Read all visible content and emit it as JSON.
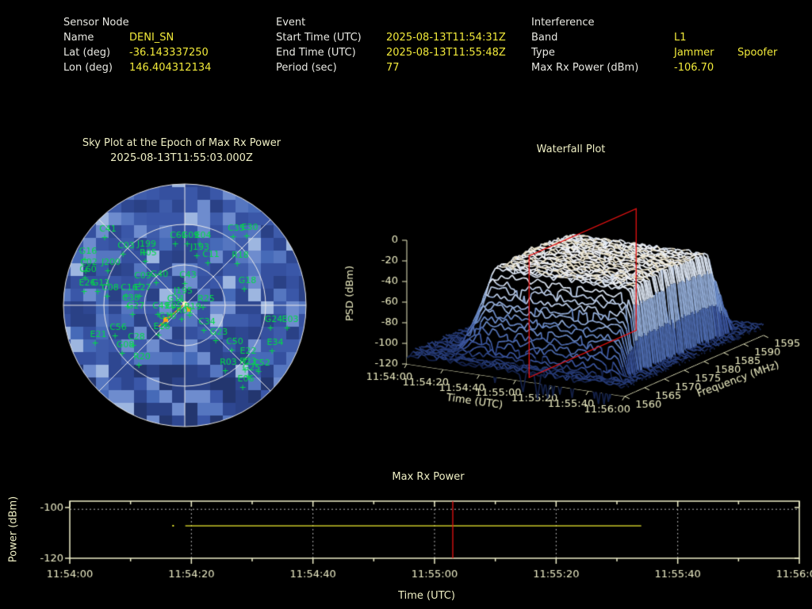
{
  "header": {
    "sensor_node": {
      "title": "Sensor Node",
      "rows": [
        {
          "label": "Name",
          "value": "DENI_SN"
        },
        {
          "label": "Lat (deg)",
          "value": "-36.143337250"
        },
        {
          "label": "Lon (deg)",
          "value": "146.404312134"
        }
      ]
    },
    "event": {
      "title": "Event",
      "rows": [
        {
          "label": "Start Time (UTC)",
          "value": "2025-08-13T11:54:31Z"
        },
        {
          "label": "End Time (UTC)",
          "value": "2025-08-13T11:55:48Z"
        },
        {
          "label": "Period (sec)",
          "value": "77"
        }
      ]
    },
    "interference": {
      "title": "Interference",
      "rows": [
        {
          "label": "Band",
          "value": "L1",
          "value2": ""
        },
        {
          "label": "Type",
          "value": "Jammer",
          "value2": "Spoofer"
        },
        {
          "label": "Max Rx Power (dBm)",
          "value": "-106.70",
          "value2": ""
        }
      ]
    }
  },
  "colors": {
    "label_text": "#e8e8e2",
    "value_text": "#f2ea3a",
    "title_text": "#efefc4",
    "frame": "#eeeec8",
    "grid_dotted": "#b4b4b4",
    "green": "#00dc46",
    "orange": "#ffa018",
    "yellow_series": "#f0ee30",
    "red_marker": "#e81212"
  },
  "chart_data": [
    {
      "type": "skyplot",
      "title": "Sky Plot at the Epoch of Max Rx Power",
      "subtitle": "2025-08-13T11:55:03.000Z",
      "elevation_rings_deg": [
        30,
        60
      ],
      "azimuth_spokes_deg": [
        0,
        45,
        90,
        135,
        180,
        225,
        270,
        315
      ],
      "label_color": "#00dc46",
      "satellites": [
        {
          "id": "C41",
          "x": 73,
          "y": 64
        },
        {
          "id": "G16",
          "x": 48,
          "y": 92
        },
        {
          "id": "C02",
          "x": 49,
          "y": 106
        },
        {
          "id": "J200",
          "x": 77,
          "y": 106
        },
        {
          "id": "C60",
          "x": 48,
          "y": 115
        },
        {
          "id": "E26",
          "x": 47,
          "y": 132
        },
        {
          "id": "G13",
          "x": 64,
          "y": 132
        },
        {
          "id": "C08",
          "x": 76,
          "y": 138
        },
        {
          "id": "C16",
          "x": 100,
          "y": 138
        },
        {
          "id": "E27",
          "x": 117,
          "y": 138
        },
        {
          "id": "C38",
          "x": 102,
          "y": 151
        },
        {
          "id": "G27",
          "x": 108,
          "y": 161
        },
        {
          "id": "C03",
          "x": 96,
          "y": 85
        },
        {
          "id": "J199",
          "x": 122,
          "y": 83
        },
        {
          "id": "R05",
          "x": 124,
          "y": 94
        },
        {
          "id": "C61",
          "x": 162,
          "y": 72
        },
        {
          "id": "G09",
          "x": 177,
          "y": 72
        },
        {
          "id": "E04",
          "x": 193,
          "y": 72
        },
        {
          "id": "J193",
          "x": 189,
          "y": 87
        },
        {
          "id": "C11",
          "x": 203,
          "y": 96
        },
        {
          "id": "R18",
          "x": 240,
          "y": 97
        },
        {
          "id": "C35",
          "x": 235,
          "y": 63
        },
        {
          "id": "E30",
          "x": 252,
          "y": 62
        },
        {
          "id": "C09",
          "x": 117,
          "y": 123
        },
        {
          "id": "G40",
          "x": 138,
          "y": 121
        },
        {
          "id": "C43",
          "x": 174,
          "y": 122
        },
        {
          "id": "G18",
          "x": 249,
          "y": 129
        },
        {
          "id": "J195",
          "x": 168,
          "y": 142
        },
        {
          "id": "G11",
          "x": 159,
          "y": 152
        },
        {
          "id": "R25",
          "x": 197,
          "y": 152
        },
        {
          "id": "C49",
          "x": 140,
          "y": 161
        },
        {
          "id": "E05",
          "x": 156,
          "y": 161
        },
        {
          "id": "R19",
          "x": 180,
          "y": 162
        },
        {
          "id": "R01",
          "x": 170,
          "y": 167
        },
        {
          "id": "G10",
          "x": 148,
          "y": 174
        },
        {
          "id": "C34",
          "x": 198,
          "y": 181
        },
        {
          "id": "G23",
          "x": 213,
          "y": 194
        },
        {
          "id": "C50",
          "x": 233,
          "y": 206
        },
        {
          "id": "E22",
          "x": 250,
          "y": 218
        },
        {
          "id": "R03",
          "x": 225,
          "y": 232
        },
        {
          "id": "G24",
          "x": 282,
          "y": 178
        },
        {
          "id": "E03",
          "x": 303,
          "y": 178
        },
        {
          "id": "E34",
          "x": 284,
          "y": 207
        },
        {
          "id": "R23",
          "x": 250,
          "y": 231
        },
        {
          "id": "C52",
          "x": 267,
          "y": 233
        },
        {
          "id": "G25",
          "x": 254,
          "y": 239
        },
        {
          "id": "E06",
          "x": 247,
          "y": 253
        },
        {
          "id": "R20",
          "x": 116,
          "y": 225
        },
        {
          "id": "G08",
          "x": 95,
          "y": 210
        },
        {
          "id": "C28",
          "x": 109,
          "y": 200
        },
        {
          "id": "C56",
          "x": 86,
          "y": 188
        },
        {
          "id": "E21",
          "x": 61,
          "y": 197
        },
        {
          "id": "E16",
          "x": 141,
          "y": 187
        }
      ],
      "interference_overlay": {
        "center": [
          170,
          158
        ],
        "line_to": [
          137,
          187
        ],
        "squares": [
          [
            175,
            165
          ],
          [
            146,
            178
          ]
        ]
      }
    },
    {
      "type": "surface3d",
      "title": "Waterfall Plot",
      "xlabel": "Time (UTC)",
      "ylabel": "Frequency (MHz)",
      "zlabel": "PSD (dBm)",
      "time_ticks": [
        "11:54:00",
        "11:54:20",
        "11:54:40",
        "11:55:00",
        "11:55:20",
        "11:55:40",
        "11:56:00"
      ],
      "freq_ticks_mhz": [
        1560,
        1565,
        1570,
        1575,
        1580,
        1585,
        1590,
        1595
      ],
      "psd_ticks_dbm": [
        0,
        -20,
        -40,
        -60,
        -80,
        -100,
        -120
      ],
      "freq_range_mhz": [
        1560,
        1595
      ],
      "psd_range_dbm": [
        -120,
        0
      ],
      "time_range_sec": [
        0,
        120
      ],
      "signal": {
        "noise_floor_dbm": -111,
        "plateau_dbm": -27,
        "center_freq_mhz": 1577.5,
        "plateau_halfwidth_mhz": 10,
        "skirt_halfwidth_mhz": 15,
        "start_sec": 16,
        "rise_sec": 15,
        "end_sec": 112
      },
      "epoch_plane": {
        "time": "11:55:03",
        "freq_span_mhz": [
          1562,
          1589
        ],
        "psd_span_dbm": [
          -120,
          -2
        ]
      }
    },
    {
      "type": "line",
      "title": "Max Rx Power",
      "xlabel": "Time (UTC)",
      "ylabel": "Power (dBm)",
      "xticks": [
        "11:54:00",
        "11:54:20",
        "11:54:40",
        "11:55:00",
        "11:55:20",
        "11:55:40",
        "11:56:00"
      ],
      "yticks_dbm": [
        -100,
        -120
      ],
      "ylim_dbm": [
        -97.5,
        -120
      ],
      "threshold_dbm": -100.7,
      "series": [
        {
          "name": "Max Rx Power",
          "value_dbm": -107.2,
          "start": "11:54:19",
          "end": "11:55:34",
          "isolated_point_time": "11:54:17"
        }
      ],
      "epoch_marker": {
        "time": "11:55:03"
      }
    }
  ]
}
